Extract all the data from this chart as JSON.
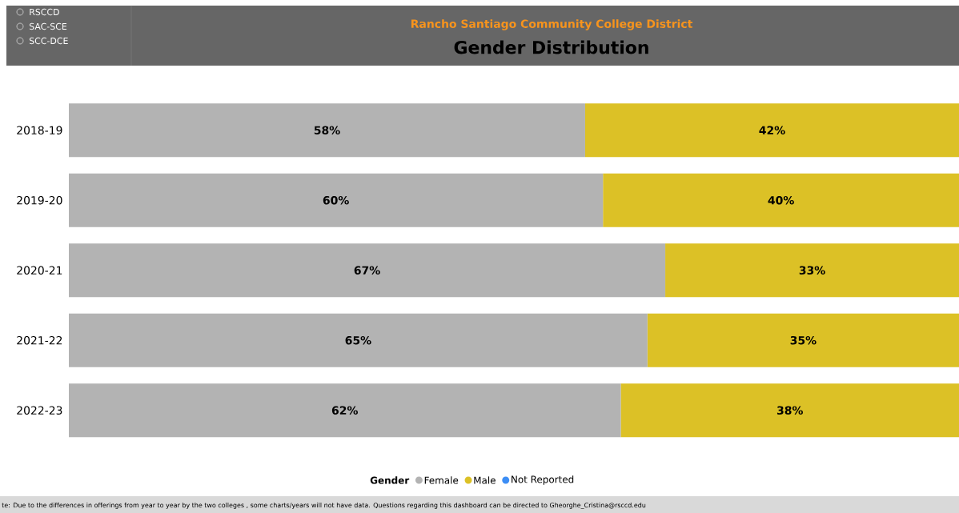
{
  "chart_data": {
    "type": "bar",
    "orientation": "horizontal",
    "stacked": true,
    "title": "Rancho Santiago Community College District",
    "subtitle": "Gender Distribution",
    "legend_title": "Gender",
    "legend": "bottom",
    "tick_labels": "y",
    "xlim": [
      0,
      100
    ],
    "categories": [
      "2018-19",
      "2019-20",
      "2020-21",
      "2021-22",
      "2022-23"
    ],
    "series": [
      {
        "name": "Female",
        "color": "#b3b3b3",
        "values": [
          58,
          60,
          67,
          65,
          62
        ],
        "value_labels": [
          "58%",
          "60%",
          "67%",
          "65%",
          "62%"
        ]
      },
      {
        "name": "Male",
        "color": "#dcc126",
        "values": [
          42,
          40,
          33,
          35,
          38
        ],
        "value_labels": [
          "42%",
          "40%",
          "33%",
          "35%",
          "38%"
        ]
      },
      {
        "name": "Not Reported",
        "color": "#3d8ef5",
        "values": [
          null,
          null,
          null,
          null,
          null
        ]
      }
    ],
    "annotations": [
      "RSCCD",
      "SAC-SCE",
      "SCC-DCE",
      "te: Due to the differences in  offerings  from year to year by the two colleges , some charts/years will not have data. Questions regarding this dashboard can be directed to Gheorghe_Cristina@rsccd.edu"
    ]
  }
}
